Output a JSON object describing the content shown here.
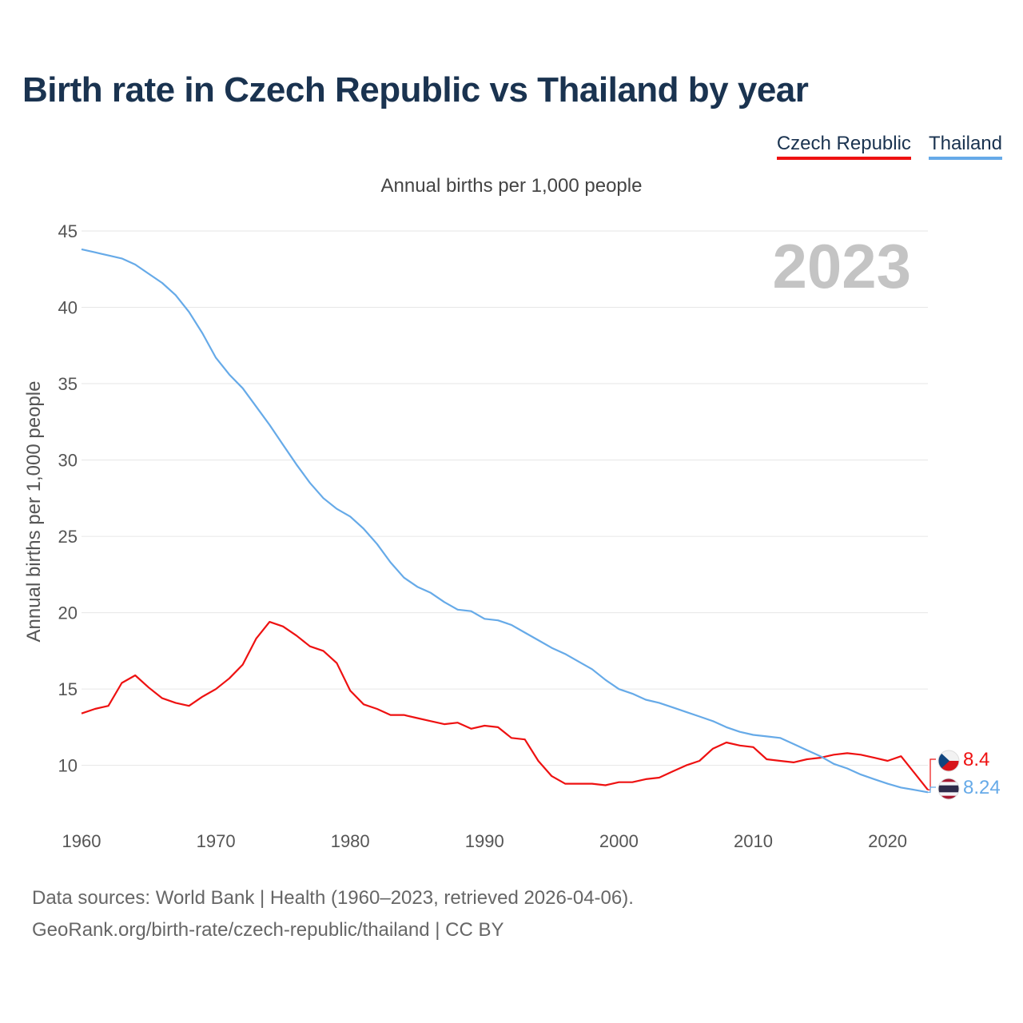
{
  "title": "Birth rate in Czech Republic vs Thailand by year",
  "legend": [
    {
      "name": "Czech Republic",
      "color": "#ee1111"
    },
    {
      "name": "Thailand",
      "color": "#66aae8"
    }
  ],
  "footer": {
    "line1": "Data sources: World Bank | Health (1960–2023, retrieved 2026-04-06).",
    "line2": "GeoRank.org/birth-rate/czech-republic/thailand | CC BY"
  },
  "chart_data": {
    "type": "line",
    "title": "Birth rate in Czech Republic vs Thailand by year",
    "subtitle": "Annual births per 1,000 people",
    "xlabel": "",
    "ylabel": "Annual births per 1,000 people",
    "xlim": [
      1960,
      2023
    ],
    "ylim": [
      7,
      45
    ],
    "yticks": [
      10,
      15,
      20,
      25,
      30,
      35,
      40,
      45
    ],
    "xticks": [
      1960,
      1970,
      1980,
      1990,
      2000,
      2010,
      2020
    ],
    "grid": true,
    "year_label": "2023",
    "x": [
      1960,
      1961,
      1962,
      1963,
      1964,
      1965,
      1966,
      1967,
      1968,
      1969,
      1970,
      1971,
      1972,
      1973,
      1974,
      1975,
      1976,
      1977,
      1978,
      1979,
      1980,
      1981,
      1982,
      1983,
      1984,
      1985,
      1986,
      1987,
      1988,
      1989,
      1990,
      1991,
      1992,
      1993,
      1994,
      1995,
      1996,
      1997,
      1998,
      1999,
      2000,
      2001,
      2002,
      2003,
      2004,
      2005,
      2006,
      2007,
      2008,
      2009,
      2010,
      2011,
      2012,
      2013,
      2014,
      2015,
      2016,
      2017,
      2018,
      2019,
      2020,
      2021,
      2022,
      2023
    ],
    "series": [
      {
        "name": "Czech Republic",
        "color": "#ee1111",
        "end_label": "8.4",
        "values": [
          13.4,
          13.7,
          13.9,
          15.4,
          15.9,
          15.1,
          14.4,
          14.1,
          13.9,
          14.5,
          15.0,
          15.7,
          16.6,
          18.3,
          19.4,
          19.1,
          18.5,
          17.8,
          17.5,
          16.7,
          14.9,
          14.0,
          13.7,
          13.3,
          13.3,
          13.1,
          12.9,
          12.7,
          12.8,
          12.4,
          12.6,
          12.5,
          11.8,
          11.7,
          10.3,
          9.3,
          8.8,
          8.8,
          8.8,
          8.7,
          8.9,
          8.9,
          9.1,
          9.2,
          9.6,
          10.0,
          10.3,
          11.1,
          11.5,
          11.3,
          11.2,
          10.4,
          10.3,
          10.2,
          10.4,
          10.5,
          10.7,
          10.8,
          10.7,
          10.5,
          10.3,
          10.6,
          9.5,
          8.4
        ]
      },
      {
        "name": "Thailand",
        "color": "#66aae8",
        "end_label": "8.24",
        "values": [
          43.8,
          43.6,
          43.4,
          43.2,
          42.8,
          42.2,
          41.6,
          40.8,
          39.7,
          38.3,
          36.7,
          35.6,
          34.7,
          33.5,
          32.3,
          31.0,
          29.7,
          28.5,
          27.5,
          26.8,
          26.3,
          25.5,
          24.5,
          23.3,
          22.3,
          21.7,
          21.3,
          20.7,
          20.2,
          20.1,
          19.6,
          19.5,
          19.2,
          18.7,
          18.2,
          17.7,
          17.3,
          16.8,
          16.3,
          15.6,
          15.0,
          14.7,
          14.3,
          14.1,
          13.8,
          13.5,
          13.2,
          12.9,
          12.5,
          12.2,
          12.0,
          11.9,
          11.8,
          11.4,
          11.0,
          10.6,
          10.1,
          9.8,
          9.4,
          9.1,
          8.8,
          8.55,
          8.4,
          8.24
        ]
      }
    ]
  }
}
